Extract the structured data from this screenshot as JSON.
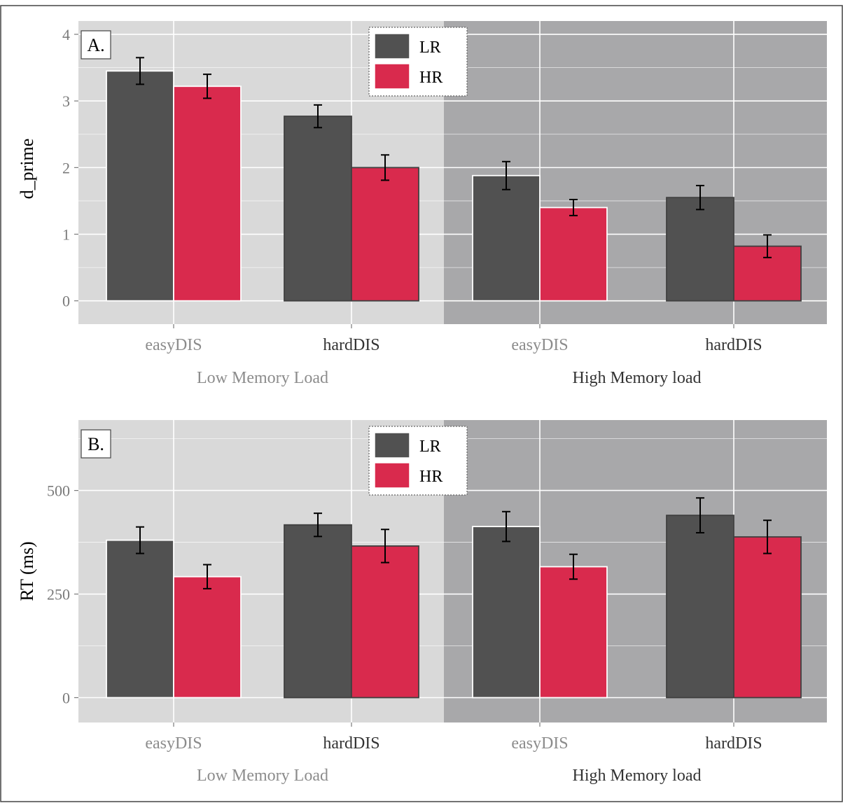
{
  "chart_data": [
    {
      "panel_label": "A.",
      "type": "bar",
      "ylabel": "d_prime",
      "ylim": [
        -0.35,
        4.2
      ],
      "yticks": [
        0,
        1,
        2,
        3,
        4
      ],
      "grid": true,
      "legend": {
        "placement": "top-center",
        "entries": [
          "LR",
          "HR"
        ]
      },
      "categories": [
        "easyDIS",
        "hardDIS",
        "easyDIS",
        "hardDIS"
      ],
      "groups": [
        {
          "label": "Low Memory Load",
          "categories": [
            0,
            1
          ],
          "label_color": "#8c8c8c",
          "background": "#d9d9d9"
        },
        {
          "label": "High Memory load",
          "categories": [
            2,
            3
          ],
          "label_color": "#333333",
          "background": "#a8a8aa"
        }
      ],
      "category_label_colors": [
        "#8c8c8c",
        "#333333",
        "#8c8c8c",
        "#333333"
      ],
      "series": [
        {
          "name": "LR",
          "color": "#515151",
          "values": [
            3.45,
            2.77,
            1.88,
            1.55
          ],
          "errors": [
            0.2,
            0.17,
            0.21,
            0.18
          ]
        },
        {
          "name": "HR",
          "color": "#d92a4d",
          "values": [
            3.22,
            2.0,
            1.4,
            0.82
          ],
          "errors": [
            0.18,
            0.19,
            0.12,
            0.17
          ]
        }
      ],
      "bar_outline_by_category": [
        "#ffffff",
        "#404040",
        "#ffffff",
        "#404040"
      ]
    },
    {
      "panel_label": "B.",
      "type": "bar",
      "ylabel": "RT (ms)",
      "ylim": [
        -60,
        670
      ],
      "yticks": [
        0,
        250,
        500
      ],
      "grid": true,
      "legend": {
        "placement": "top-center",
        "entries": [
          "LR",
          "HR"
        ]
      },
      "categories": [
        "easyDIS",
        "hardDIS",
        "easyDIS",
        "hardDIS"
      ],
      "groups": [
        {
          "label": "Low Memory Load",
          "categories": [
            0,
            1
          ],
          "label_color": "#8c8c8c",
          "background": "#d9d9d9"
        },
        {
          "label": "High Memory load",
          "categories": [
            2,
            3
          ],
          "label_color": "#333333",
          "background": "#a8a8aa"
        }
      ],
      "category_label_colors": [
        "#8c8c8c",
        "#333333",
        "#8c8c8c",
        "#333333"
      ],
      "series": [
        {
          "name": "LR",
          "color": "#515151",
          "values": [
            380,
            417,
            413,
            440
          ],
          "errors": [
            32,
            28,
            36,
            42
          ]
        },
        {
          "name": "HR",
          "color": "#d92a4d",
          "values": [
            292,
            366,
            316,
            388
          ],
          "errors": [
            29,
            40,
            30,
            40
          ]
        }
      ],
      "bar_outline_by_category": [
        "#ffffff",
        "#404040",
        "#ffffff",
        "#404040"
      ]
    }
  ],
  "colors": {
    "panel_low": "#d9d9d9",
    "panel_high": "#a8a8aa",
    "tick_label": "#7a7a7a",
    "LR": "#515151",
    "HR": "#d92a4d"
  }
}
